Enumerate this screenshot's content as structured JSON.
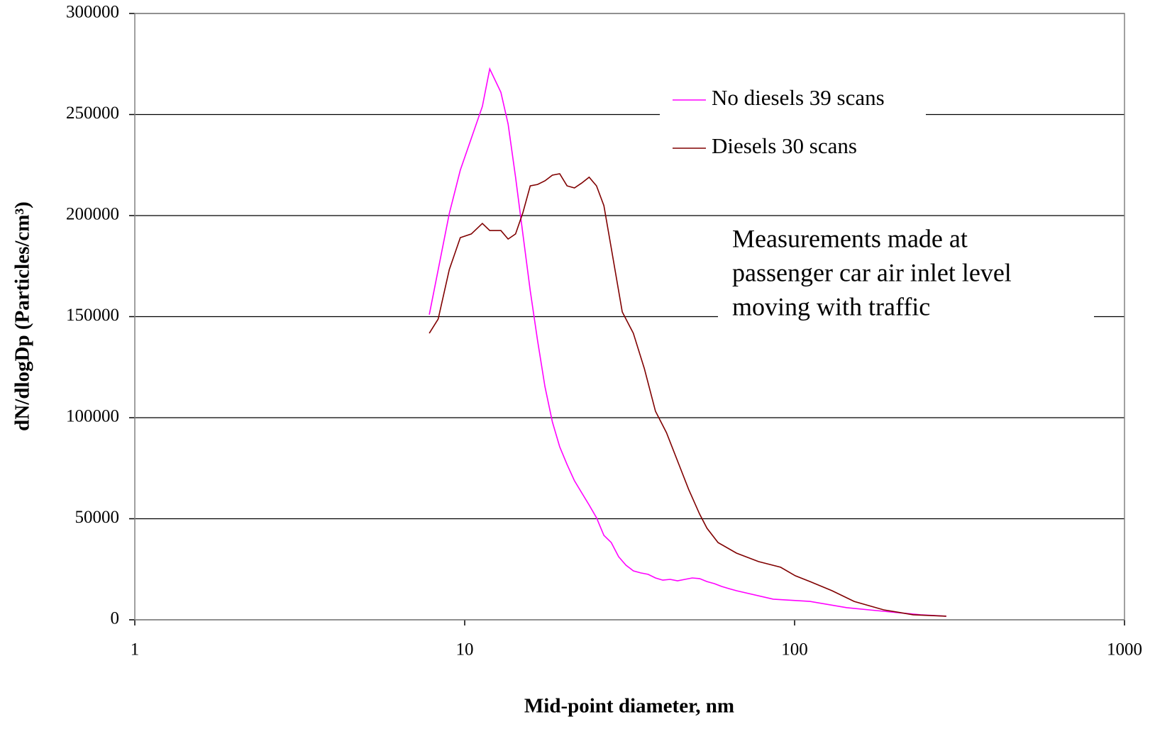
{
  "chart_data": {
    "type": "line",
    "x_label": "Mid-point diameter, nm",
    "y_label": "dN/dlogDp (Particles/cm³)",
    "xscale": "log",
    "grid": true,
    "legend_position": "upper right",
    "xlim": [
      1,
      1000
    ],
    "xticks": [
      1,
      10,
      100,
      1000
    ],
    "ylim": [
      0,
      300000
    ],
    "yticks": [
      0,
      50000,
      100000,
      150000,
      200000,
      250000,
      300000
    ],
    "annotation": [
      "Measurements made at",
      "passenger car air inlet level",
      "moving with traffic"
    ],
    "series": [
      {
        "name": "No diesels 39 scans",
        "color": "#ff00ff",
        "x": [
          7.81,
          8.98,
          9.7,
          10.47,
          11.31,
          11.91,
          12.87,
          13.54,
          14.26,
          15.01,
          15.8,
          16.63,
          17.51,
          18.44,
          19.41,
          20.43,
          21.51,
          22.64,
          23.84,
          25.09,
          26.42,
          27.81,
          29.28,
          30.82,
          32.45,
          34.16,
          35.96,
          37.86,
          39.85,
          41.96,
          44.17,
          46.5,
          48.95,
          51.54,
          54.26,
          57.12,
          60.13,
          63.31,
          66.65,
          86.15,
          111.4,
          144.0,
          186.3,
          240.8,
          288.3
        ],
        "values": [
          151000,
          201000,
          222500,
          238200,
          254000,
          272600,
          261000,
          245300,
          219000,
          190900,
          162800,
          138200,
          115400,
          97900,
          85600,
          76800,
          68800,
          62800,
          56800,
          50500,
          41800,
          38200,
          31200,
          27000,
          24200,
          23200,
          22500,
          20700,
          19600,
          20000,
          19300,
          20000,
          20700,
          20400,
          18900,
          17900,
          16500,
          15400,
          14400,
          10200,
          9100,
          6000,
          4200,
          2500,
          1800
        ]
      },
      {
        "name": "Diesels 30 scans",
        "color": "#800000",
        "x": [
          7.81,
          8.31,
          8.98,
          9.7,
          10.47,
          11.31,
          11.91,
          12.87,
          13.54,
          14.26,
          15.01,
          15.8,
          16.63,
          17.51,
          18.44,
          19.41,
          20.43,
          21.51,
          22.64,
          23.84,
          25.09,
          26.42,
          27.81,
          30.04,
          32.45,
          35.05,
          37.86,
          40.89,
          44.17,
          47.71,
          51.54,
          54.26,
          58.61,
          66.65,
          77.74,
          90.7,
          100.5,
          111.4,
          129.9,
          151.6,
          186.3,
          228.8,
          288.3
        ],
        "values": [
          141800,
          148800,
          173300,
          189100,
          190900,
          196100,
          192600,
          192600,
          188400,
          190900,
          201400,
          214700,
          215400,
          217200,
          220000,
          220700,
          214700,
          213700,
          216100,
          219000,
          214700,
          204900,
          183900,
          152300,
          141800,
          124200,
          103200,
          92600,
          78600,
          64600,
          52300,
          45300,
          38200,
          33000,
          28800,
          26000,
          21800,
          18900,
          14400,
          9100,
          4900,
          2500,
          1800
        ]
      }
    ]
  }
}
